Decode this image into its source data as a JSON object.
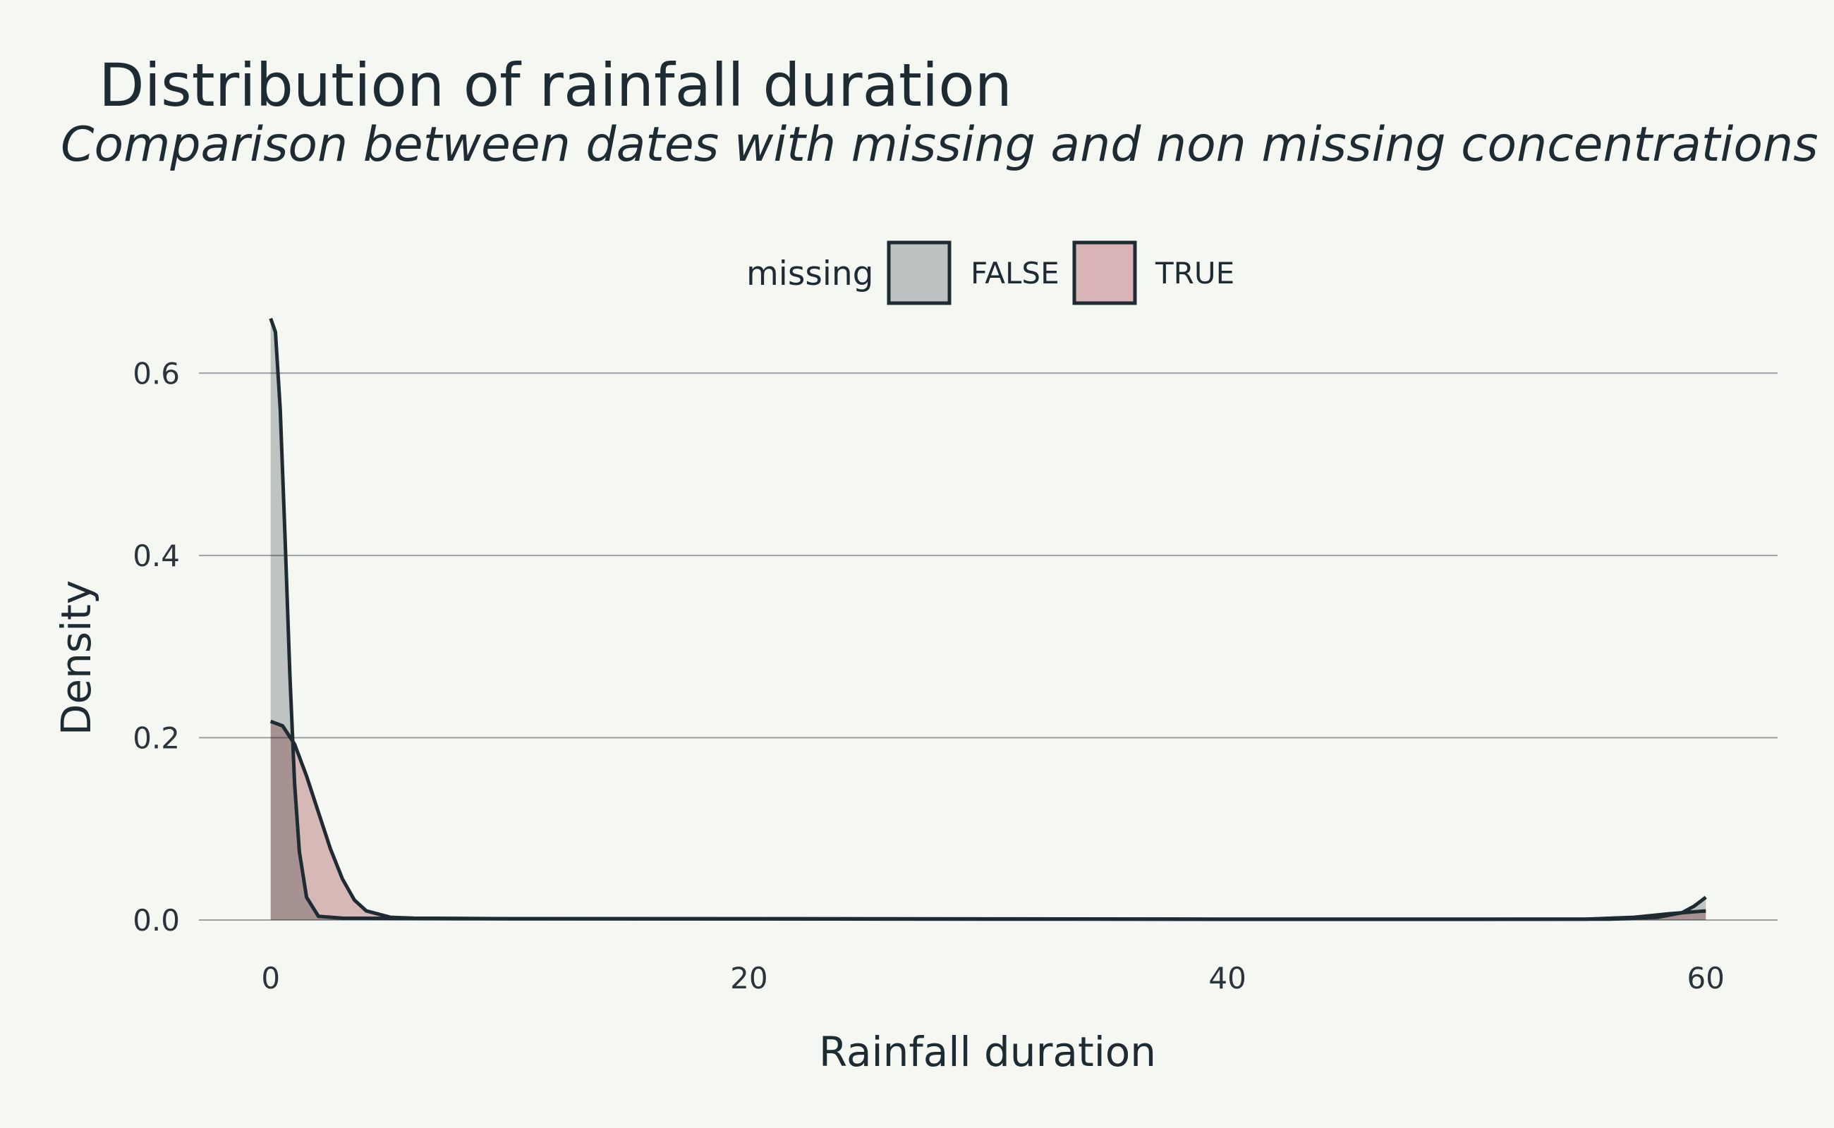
{
  "chart_data": {
    "type": "area",
    "title": "Distribution of rainfall duration",
    "subtitle": "Comparison between dates with missing and non missing concentrations",
    "xlabel": "Rainfall duration",
    "ylabel": "Density",
    "xlim": [
      -3,
      63
    ],
    "ylim": [
      0,
      0.7
    ],
    "x_ticks": [
      0,
      20,
      40,
      60
    ],
    "y_ticks": [
      0.0,
      0.2,
      0.4,
      0.6
    ],
    "x_tick_labels": [
      "0",
      "20",
      "40",
      "60"
    ],
    "y_tick_labels": [
      "0.0",
      "0.2",
      "0.4",
      "0.6"
    ],
    "grid": "horizontal",
    "legend": {
      "title": "missing",
      "position": "top"
    },
    "series": [
      {
        "name": "FALSE",
        "fill": "#bcc2c2",
        "points": [
          [
            0,
            0.66
          ],
          [
            0.2,
            0.645
          ],
          [
            0.4,
            0.56
          ],
          [
            0.6,
            0.42
          ],
          [
            0.8,
            0.27
          ],
          [
            1.0,
            0.15
          ],
          [
            1.2,
            0.075
          ],
          [
            1.5,
            0.025
          ],
          [
            2.0,
            0.004
          ],
          [
            3,
            0.002
          ],
          [
            10,
            0.0015
          ],
          [
            20,
            0.0015
          ],
          [
            30,
            0.0012
          ],
          [
            40,
            0.001
          ],
          [
            50,
            0.001
          ],
          [
            56,
            0.001
          ],
          [
            58,
            0.003
          ],
          [
            59,
            0.008
          ],
          [
            59.5,
            0.015
          ],
          [
            60,
            0.025
          ]
        ]
      },
      {
        "name": "TRUE",
        "fill": "#d9b3b5",
        "points": [
          [
            0,
            0.218
          ],
          [
            0.5,
            0.213
          ],
          [
            1,
            0.193
          ],
          [
            1.5,
            0.158
          ],
          [
            2,
            0.118
          ],
          [
            2.5,
            0.078
          ],
          [
            3,
            0.045
          ],
          [
            3.5,
            0.022
          ],
          [
            4,
            0.01
          ],
          [
            5,
            0.003
          ],
          [
            6,
            0.002
          ],
          [
            10,
            0.0015
          ],
          [
            20,
            0.0012
          ],
          [
            30,
            0.001
          ],
          [
            40,
            0.0008
          ],
          [
            50,
            0.0008
          ],
          [
            55,
            0.001
          ],
          [
            57,
            0.003
          ],
          [
            58.5,
            0.007
          ],
          [
            60,
            0.01
          ]
        ]
      }
    ]
  },
  "colors": {
    "background": "#f5f7f3",
    "line": "#1f2b33",
    "grid": "#9aa0a3"
  }
}
